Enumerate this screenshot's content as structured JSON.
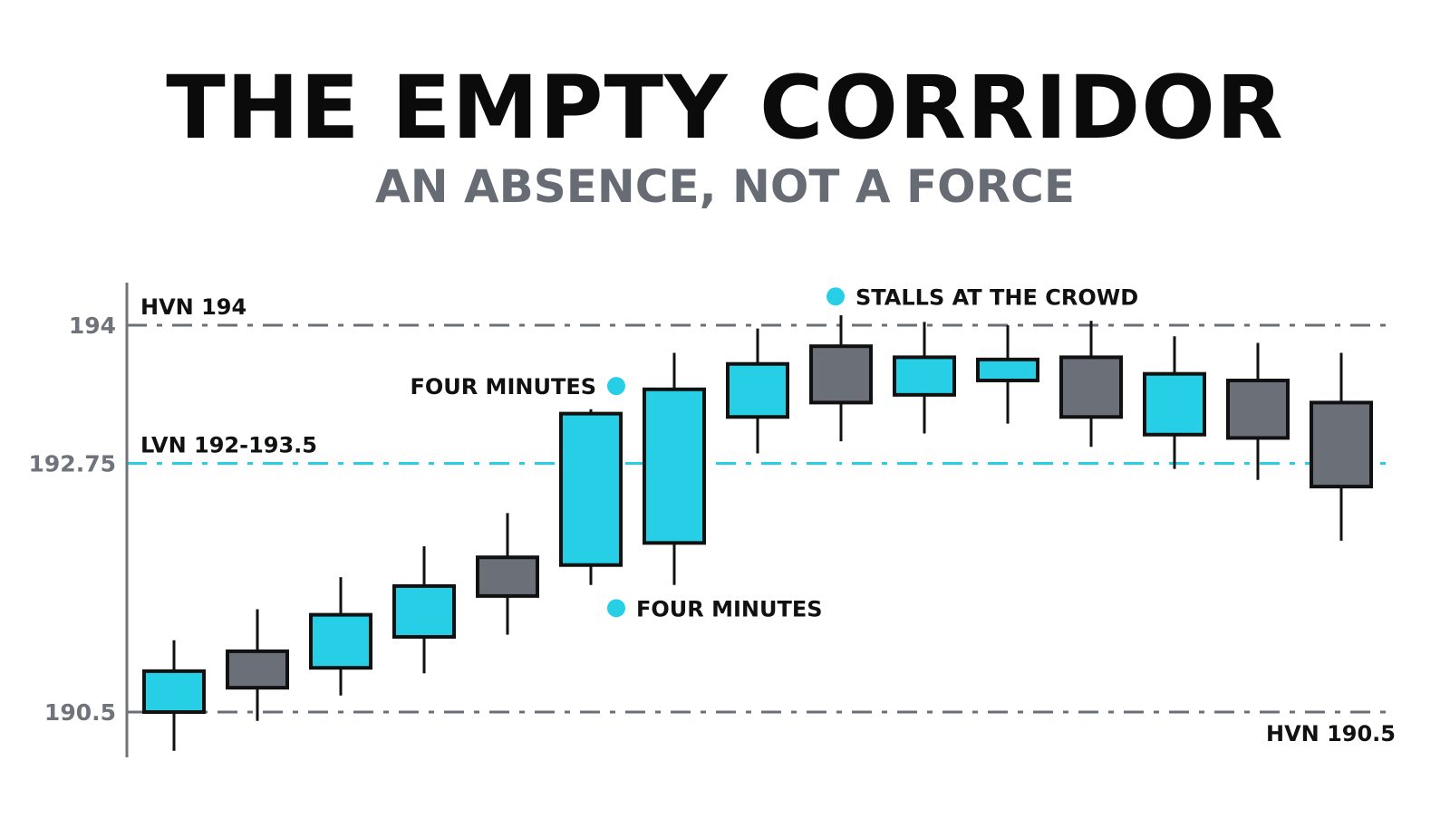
{
  "title": "THE EMPTY CORRIDOR",
  "subtitle": "AN ABSENCE, NOT A FORCE",
  "colors": {
    "bull": "#27cfe6",
    "bear": "#6b6f77",
    "outline": "#111111",
    "hvn_line": "#6b6f77",
    "lvn_line": "#27cfe6",
    "axis": "#6f737b",
    "dot": "#27cfe6"
  },
  "chart_data": {
    "type": "candlestick",
    "title": "THE EMPTY CORRIDOR",
    "subtitle": "AN ABSENCE, NOT A FORCE",
    "ylim": [
      189.9,
      194.45
    ],
    "y_ticks": [
      {
        "value": 194,
        "label": "194"
      },
      {
        "value": 192.75,
        "label": "192.75"
      },
      {
        "value": 190.5,
        "label": "190.5"
      }
    ],
    "grid": false,
    "levels": [
      {
        "value": 194,
        "label": "HVN 194",
        "kind": "hvn",
        "label_side": "left-above"
      },
      {
        "value": 192.75,
        "label": "LVN 192-193.5",
        "kind": "lvn",
        "label_side": "left-above"
      },
      {
        "value": 190.5,
        "label": "HVN 190.5",
        "kind": "hvn",
        "label_side": "right-below"
      }
    ],
    "candles": [
      {
        "open": 190.5,
        "close": 190.87,
        "high": 191.15,
        "low": 190.15,
        "color": "bull"
      },
      {
        "open": 191.05,
        "close": 190.72,
        "high": 191.43,
        "low": 190.42,
        "color": "bear"
      },
      {
        "open": 190.9,
        "close": 191.38,
        "high": 191.72,
        "low": 190.65,
        "color": "bull"
      },
      {
        "open": 191.18,
        "close": 191.64,
        "high": 192.0,
        "low": 190.85,
        "color": "bull"
      },
      {
        "open": 191.9,
        "close": 191.55,
        "high": 192.3,
        "low": 191.2,
        "color": "bear"
      },
      {
        "open": 191.83,
        "close": 193.2,
        "high": 193.24,
        "low": 191.65,
        "color": "bull"
      },
      {
        "open": 192.03,
        "close": 193.42,
        "high": 193.75,
        "low": 191.65,
        "color": "bull"
      },
      {
        "open": 193.17,
        "close": 193.65,
        "high": 193.97,
        "low": 192.84,
        "color": "bull"
      },
      {
        "open": 193.81,
        "close": 193.3,
        "high": 194.09,
        "low": 192.95,
        "color": "bear"
      },
      {
        "open": 193.37,
        "close": 193.71,
        "high": 194.03,
        "low": 193.02,
        "color": "bull"
      },
      {
        "open": 193.5,
        "close": 193.69,
        "high": 194.0,
        "low": 193.11,
        "color": "bull"
      },
      {
        "open": 193.71,
        "close": 193.17,
        "high": 194.04,
        "low": 192.9,
        "color": "bear"
      },
      {
        "open": 193.01,
        "close": 193.56,
        "high": 193.9,
        "low": 192.7,
        "color": "bull"
      },
      {
        "open": 193.5,
        "close": 192.98,
        "high": 193.84,
        "low": 192.6,
        "color": "bear"
      },
      {
        "open": 193.3,
        "close": 192.54,
        "high": 193.75,
        "low": 192.05,
        "color": "bear"
      }
    ],
    "annotations": [
      {
        "text": "STALLS AT THE CROWD",
        "candle": 8,
        "y": 194.26,
        "side": "right"
      },
      {
        "text": "FOUR MINUTES",
        "candle": 5,
        "y": 193.45,
        "side": "left"
      },
      {
        "text": "FOUR MINUTES",
        "candle": 5,
        "y": 191.44,
        "side": "right"
      }
    ]
  }
}
